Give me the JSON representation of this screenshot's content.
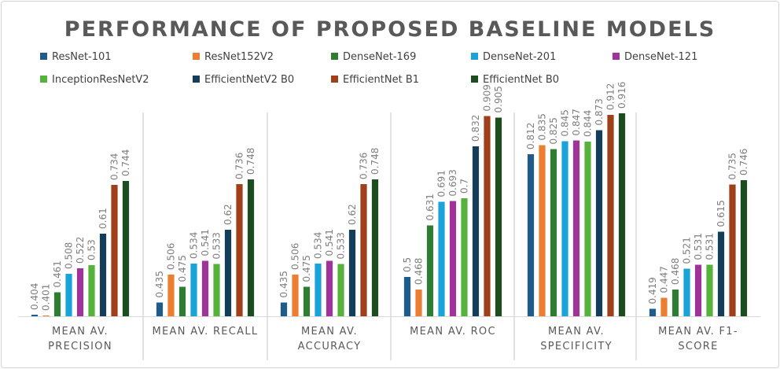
{
  "chart_data": {
    "type": "bar",
    "title": "PERFORMANCE OF PROPOSED BASELINE  MODELS",
    "categories": [
      [
        "MEAN AV.",
        "PRECISION"
      ],
      [
        "MEAN AV. RECALL"
      ],
      [
        "MEAN AV.",
        "ACCURACY"
      ],
      [
        "MEAN AV. ROC"
      ],
      [
        "MEAN AV.",
        "SPECIFICITY"
      ],
      [
        "MEAN AV. F1-",
        "SCORE"
      ]
    ],
    "ylim": [
      0.4,
      0.95
    ],
    "grid": false,
    "legend_position": "top",
    "series": [
      {
        "name": "ResNet-101",
        "color": "#1f5c8b",
        "values": [
          0.404,
          0.435,
          0.435,
          0.5,
          0.812,
          0.419
        ],
        "labels": [
          "0.404",
          "0.435",
          "0.435",
          "0.5",
          "0.812",
          "0.419"
        ]
      },
      {
        "name": "ResNet152V2",
        "color": "#ed7d31",
        "values": [
          0.401,
          0.506,
          0.506,
          0.468,
          0.835,
          0.447
        ],
        "labels": [
          "0.401",
          "0.506",
          "0.506",
          "0.468",
          "0.835",
          "0.447"
        ]
      },
      {
        "name": "DenseNet-169",
        "color": "#2e7d32",
        "values": [
          0.461,
          0.475,
          0.475,
          0.631,
          0.825,
          0.468
        ],
        "labels": [
          "0.461",
          "0.475",
          "0.475",
          "0.631",
          "0.825",
          "0.468"
        ]
      },
      {
        "name": "DenseNet-201",
        "color": "#1aa3d9",
        "values": [
          0.508,
          0.534,
          0.534,
          0.691,
          0.845,
          0.521
        ],
        "labels": [
          "0.508",
          "0.534",
          "0.534",
          "0.691",
          "0.845",
          "0.521"
        ]
      },
      {
        "name": "DenseNet-121",
        "color": "#a03399",
        "values": [
          0.522,
          0.541,
          0.541,
          0.693,
          0.847,
          0.531
        ],
        "labels": [
          "0.522",
          "0.541",
          "0.541",
          "0.693",
          "0.847",
          "0.531"
        ]
      },
      {
        "name": "InceptionResNetV2",
        "color": "#55b33b",
        "values": [
          0.53,
          0.533,
          0.533,
          0.7,
          0.844,
          0.531
        ],
        "labels": [
          "0.53",
          "0.533",
          "0.533",
          "0.7",
          "0.844",
          "0.531"
        ]
      },
      {
        "name": "EfficientNetV2 B0",
        "color": "#143d59",
        "values": [
          0.61,
          0.62,
          0.62,
          0.832,
          0.873,
          0.615
        ],
        "labels": [
          "0.61",
          "0.62",
          "0.62",
          "0.832",
          "0.873",
          "0.615"
        ]
      },
      {
        "name": "EfficientNet B1",
        "color": "#a0401a",
        "values": [
          0.734,
          0.736,
          0.736,
          0.909,
          0.912,
          0.735
        ],
        "labels": [
          "0.734",
          "0.736",
          "0.736",
          "0.909",
          "0.912",
          "0.735"
        ]
      },
      {
        "name": "EfficientNet B0",
        "color": "#1b4d1f",
        "values": [
          0.744,
          0.748,
          0.748,
          0.905,
          0.916,
          0.746
        ],
        "labels": [
          "0.744",
          "0.748",
          "0.748",
          "0.905",
          "0.916",
          "0.746"
        ]
      }
    ]
  }
}
